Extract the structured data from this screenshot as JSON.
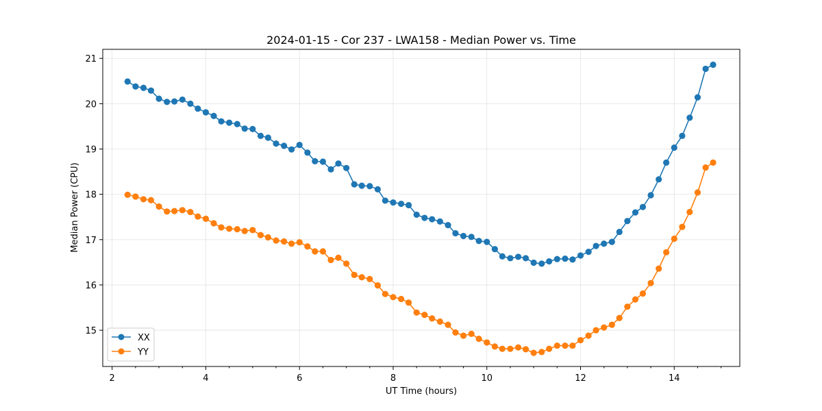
{
  "chart_data": {
    "type": "line",
    "title": "2024-01-15 - Cor 237 - LWA158 - Median Power vs. Time",
    "xlabel": "UT Time (hours)",
    "ylabel": "Median Power (CPU)",
    "xlim": [
      1.8,
      15.4
    ],
    "ylim": [
      14.2,
      21.2
    ],
    "xticks": [
      2,
      4,
      6,
      8,
      10,
      12,
      14
    ],
    "xtick_labels": [
      "2",
      "4",
      "6",
      "8",
      "10",
      "12",
      "14"
    ],
    "yticks": [
      15,
      16,
      17,
      18,
      19,
      20,
      21
    ],
    "ytick_labels": [
      "15",
      "16",
      "17",
      "18",
      "19",
      "20",
      "21"
    ],
    "grid": true,
    "legend_position": "lower-left",
    "x": [
      2.33,
      2.5,
      2.67,
      2.83,
      3.0,
      3.17,
      3.33,
      3.5,
      3.67,
      3.83,
      4.0,
      4.17,
      4.33,
      4.5,
      4.67,
      4.83,
      5.0,
      5.17,
      5.33,
      5.5,
      5.67,
      5.83,
      6.0,
      6.17,
      6.33,
      6.5,
      6.67,
      6.83,
      7.0,
      7.17,
      7.33,
      7.5,
      7.67,
      7.83,
      8.0,
      8.17,
      8.33,
      8.5,
      8.67,
      8.83,
      9.0,
      9.17,
      9.33,
      9.5,
      9.67,
      9.83,
      10.0,
      10.17,
      10.33,
      10.5,
      10.67,
      10.83,
      11.0,
      11.17,
      11.33,
      11.5,
      11.67,
      11.83,
      12.0,
      12.17,
      12.33,
      12.5,
      12.67,
      12.83,
      13.0,
      13.17,
      13.33,
      13.5,
      13.67,
      13.83,
      14.0,
      14.17,
      14.33,
      14.5,
      14.67,
      14.83
    ],
    "series": [
      {
        "name": "XX",
        "color": "#1f77b4",
        "values": [
          20.49,
          20.38,
          20.35,
          20.29,
          20.11,
          20.04,
          20.05,
          20.09,
          20.0,
          19.89,
          19.81,
          19.73,
          19.61,
          19.58,
          19.55,
          19.45,
          19.44,
          19.29,
          19.25,
          19.12,
          19.07,
          18.99,
          19.09,
          18.92,
          18.73,
          18.72,
          18.55,
          18.68,
          18.58,
          18.22,
          18.19,
          18.18,
          18.11,
          17.86,
          17.82,
          17.79,
          17.76,
          17.55,
          17.48,
          17.45,
          17.4,
          17.32,
          17.14,
          17.08,
          17.06,
          16.97,
          16.95,
          16.79,
          16.63,
          16.59,
          16.62,
          16.59,
          16.49,
          16.47,
          16.52,
          16.57,
          16.58,
          16.56,
          16.65,
          16.73,
          16.86,
          16.91,
          16.95,
          17.17,
          17.41,
          17.6,
          17.72,
          17.98,
          18.33,
          18.7,
          19.03,
          19.29,
          19.69,
          20.14,
          20.77,
          20.86
        ]
      },
      {
        "name": "YY",
        "color": "#ff7f0e",
        "values": [
          17.99,
          17.95,
          17.89,
          17.87,
          17.73,
          17.62,
          17.63,
          17.65,
          17.61,
          17.51,
          17.46,
          17.36,
          17.27,
          17.24,
          17.23,
          17.19,
          17.21,
          17.1,
          17.05,
          16.98,
          16.96,
          16.91,
          16.94,
          16.85,
          16.74,
          16.74,
          16.55,
          16.6,
          16.47,
          16.22,
          16.17,
          16.13,
          15.99,
          15.8,
          15.73,
          15.69,
          15.61,
          15.39,
          15.34,
          15.26,
          15.19,
          15.12,
          14.95,
          14.88,
          14.92,
          14.81,
          14.73,
          14.64,
          14.59,
          14.59,
          14.62,
          14.58,
          14.5,
          14.52,
          14.59,
          14.66,
          14.66,
          14.66,
          14.78,
          14.88,
          15.0,
          15.06,
          15.12,
          15.27,
          15.52,
          15.68,
          15.81,
          16.04,
          16.36,
          16.72,
          17.02,
          17.28,
          17.61,
          18.04,
          18.59,
          18.7
        ]
      }
    ]
  }
}
